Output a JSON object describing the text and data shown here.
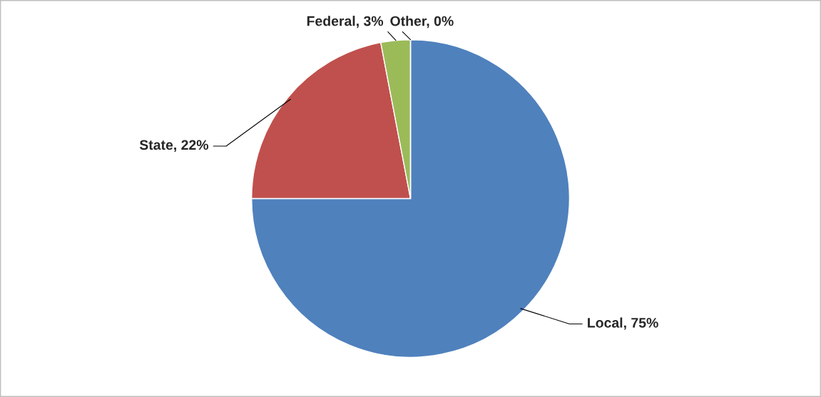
{
  "chart_data": {
    "type": "pie",
    "categories": [
      "Local",
      "State",
      "Federal",
      "Other"
    ],
    "values": [
      75,
      22,
      3,
      0
    ],
    "colors": [
      "#4f81bd",
      "#c0504d",
      "#9bbb59",
      "#8064a2"
    ],
    "value_labels": [
      ", 75%",
      ", 22%",
      ", 3%",
      ", 0%"
    ],
    "legend": false
  }
}
